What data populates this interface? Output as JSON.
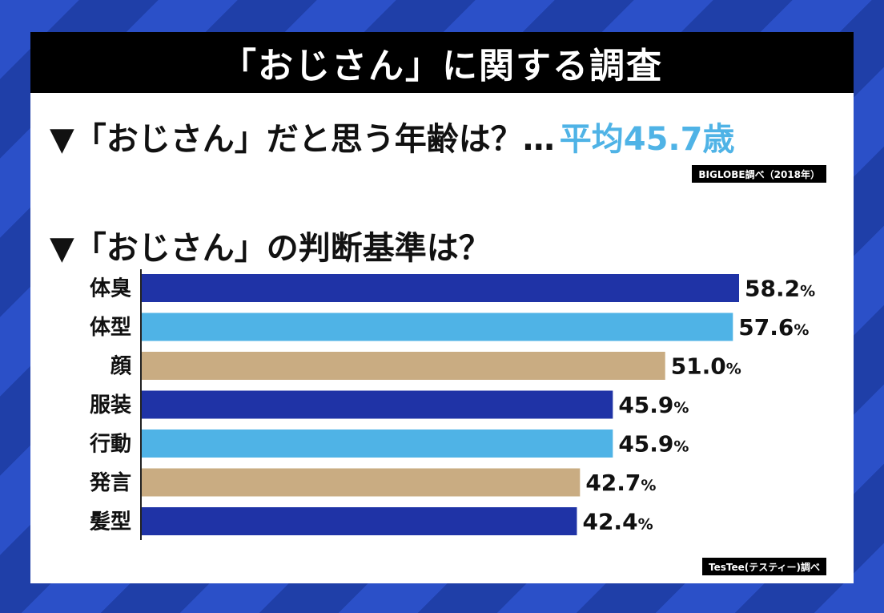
{
  "title": "「おじさん」に関する調査",
  "question1": {
    "text": "▼「おじさん」だと思う年齢は？…",
    "answer": "平均45.7歳",
    "source": "BIGLOBE調べ（2018年）"
  },
  "question2": {
    "text": "▼「おじさん」の判断基準は？",
    "source": "TesTee(テスティー)調べ"
  },
  "colors": {
    "dark_blue": "#1f33a6",
    "light_blue": "#4fb3e6",
    "tan": "#c9ac82",
    "accent_text": "#4fb3e6"
  },
  "chart_data": {
    "type": "bar",
    "orientation": "horizontal",
    "categories": [
      "体臭",
      "体型",
      "顔",
      "服装",
      "行動",
      "発言",
      "髪型"
    ],
    "values": [
      58.2,
      57.6,
      51.0,
      45.9,
      45.9,
      42.7,
      42.4
    ],
    "value_labels": [
      "58.2",
      "57.6",
      "51.0",
      "45.9",
      "45.9",
      "42.7",
      "42.4"
    ],
    "unit": "%",
    "bar_colors": [
      "#1f33a6",
      "#4fb3e6",
      "#c9ac82",
      "#1f33a6",
      "#4fb3e6",
      "#c9ac82",
      "#1f33a6"
    ],
    "xlim": [
      0,
      60
    ],
    "grid": false,
    "legend": "none"
  }
}
